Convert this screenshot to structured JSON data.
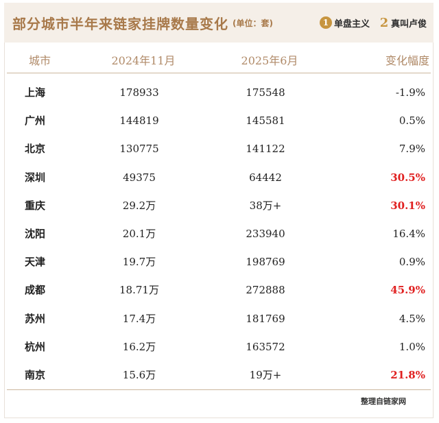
{
  "header": {
    "title": "部分城市半年来链家挂牌数量变化",
    "unit": "(单位：套)",
    "logo1": {
      "mark": "1",
      "text": "单盘主义"
    },
    "logo2": {
      "mark": "2",
      "text": "真叫卢俊"
    }
  },
  "table": {
    "columns": [
      "城市",
      "2024年11月",
      "2025年6月",
      "变化幅度"
    ],
    "rows": [
      {
        "city": "上海",
        "nov2024": "178933",
        "jun2025": "175548",
        "change": "-1.9%",
        "highlight": false
      },
      {
        "city": "广州",
        "nov2024": "144819",
        "jun2025": "145581",
        "change": "0.5%",
        "highlight": false
      },
      {
        "city": "北京",
        "nov2024": "130775",
        "jun2025": "141122",
        "change": "7.9%",
        "highlight": false
      },
      {
        "city": "深圳",
        "nov2024": "49375",
        "jun2025": "64442",
        "change": "30.5%",
        "highlight": true
      },
      {
        "city": "重庆",
        "nov2024": "29.2万",
        "jun2025": "38万+",
        "change": "30.1%",
        "highlight": true
      },
      {
        "city": "沈阳",
        "nov2024": "20.1万",
        "jun2025": "233940",
        "change": "16.4%",
        "highlight": false
      },
      {
        "city": "天津",
        "nov2024": "19.7万",
        "jun2025": "198769",
        "change": "0.9%",
        "highlight": false
      },
      {
        "city": "成都",
        "nov2024": "18.71万",
        "jun2025": "272888",
        "change": "45.9%",
        "highlight": true
      },
      {
        "city": "苏州",
        "nov2024": "17.4万",
        "jun2025": "181769",
        "change": "4.5%",
        "highlight": false
      },
      {
        "city": "杭州",
        "nov2024": "16.2万",
        "jun2025": "163572",
        "change": "1.0%",
        "highlight": false
      },
      {
        "city": "南京",
        "nov2024": "15.6万",
        "jun2025": "19万+",
        "change": "21.8%",
        "highlight": true
      }
    ]
  },
  "footer": {
    "source": "整理自链家网"
  },
  "colors": {
    "accent": "#a8794a",
    "header_bg": "#f5efe8",
    "highlight": "#e02020"
  }
}
